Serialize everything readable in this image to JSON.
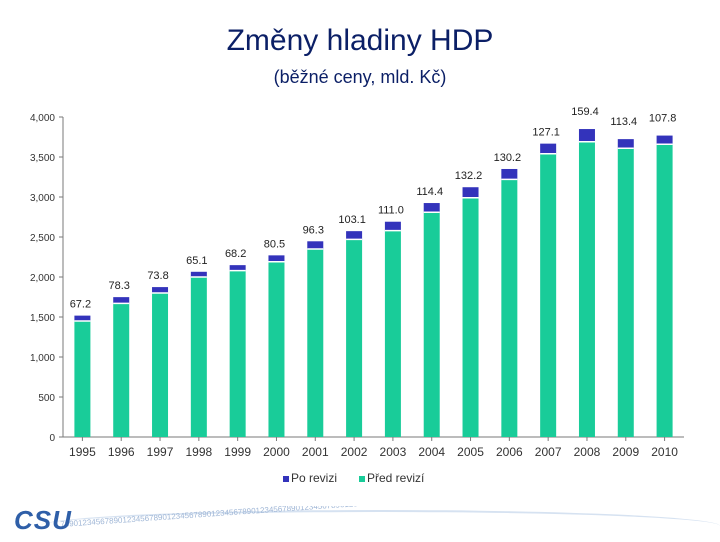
{
  "header": {
    "title": "Změny hladiny HDP",
    "subtitle": "(běžné ceny, mld. Kč)"
  },
  "chart_data": {
    "type": "bar",
    "stacked": true,
    "title": "Změny hladiny HDP",
    "subtitle": "(běžné ceny, mld. Kč)",
    "categories": [
      "1995",
      "1996",
      "1997",
      "1998",
      "1999",
      "2000",
      "2001",
      "2002",
      "2003",
      "2004",
      "2005",
      "2006",
      "2007",
      "2008",
      "2009",
      "2010"
    ],
    "series": [
      {
        "name": "Před revizí",
        "color": "#19cc99",
        "values": [
          1450,
          1670,
          1800,
          2000,
          2080,
          2190,
          2350,
          2470,
          2580,
          2810,
          2990,
          3220,
          3540,
          3690,
          3610,
          3660
        ]
      },
      {
        "name": "Po revizi",
        "color": "#3333bb",
        "values": [
          67.2,
          78.3,
          73.8,
          65.1,
          68.2,
          80.5,
          96.3,
          103.1,
          111.0,
          114.4,
          132.2,
          130.2,
          127.1,
          159.4,
          113.4,
          107.8
        ]
      }
    ],
    "data_labels": [
      "67.2",
      "78.3",
      "73.8",
      "65.1",
      "68.2",
      "80.5",
      "96.3",
      "103.1",
      "111.0",
      "114.4",
      "132.2",
      "130.2",
      "127.1",
      "159.4",
      "113.4",
      "107.8"
    ],
    "ylim": [
      0,
      4000
    ],
    "yticks": [
      0,
      500,
      1000,
      1500,
      2000,
      2500,
      3000,
      3500,
      4000
    ],
    "ytick_labels": [
      "0",
      "500",
      "1,000",
      "1,500",
      "2,000",
      "2,500",
      "3,000",
      "3,500",
      "4,000"
    ],
    "xlabel": "",
    "ylabel": "",
    "legend": {
      "position": "bottom",
      "entries": [
        "Po revizi",
        "Před revizí"
      ]
    },
    "grid": false
  },
  "footer": {
    "logo_text": "CSU",
    "strip_text": "78901234567890123456789012345678901234567890123456789012345678901234567890123456789012345678901234567890"
  }
}
